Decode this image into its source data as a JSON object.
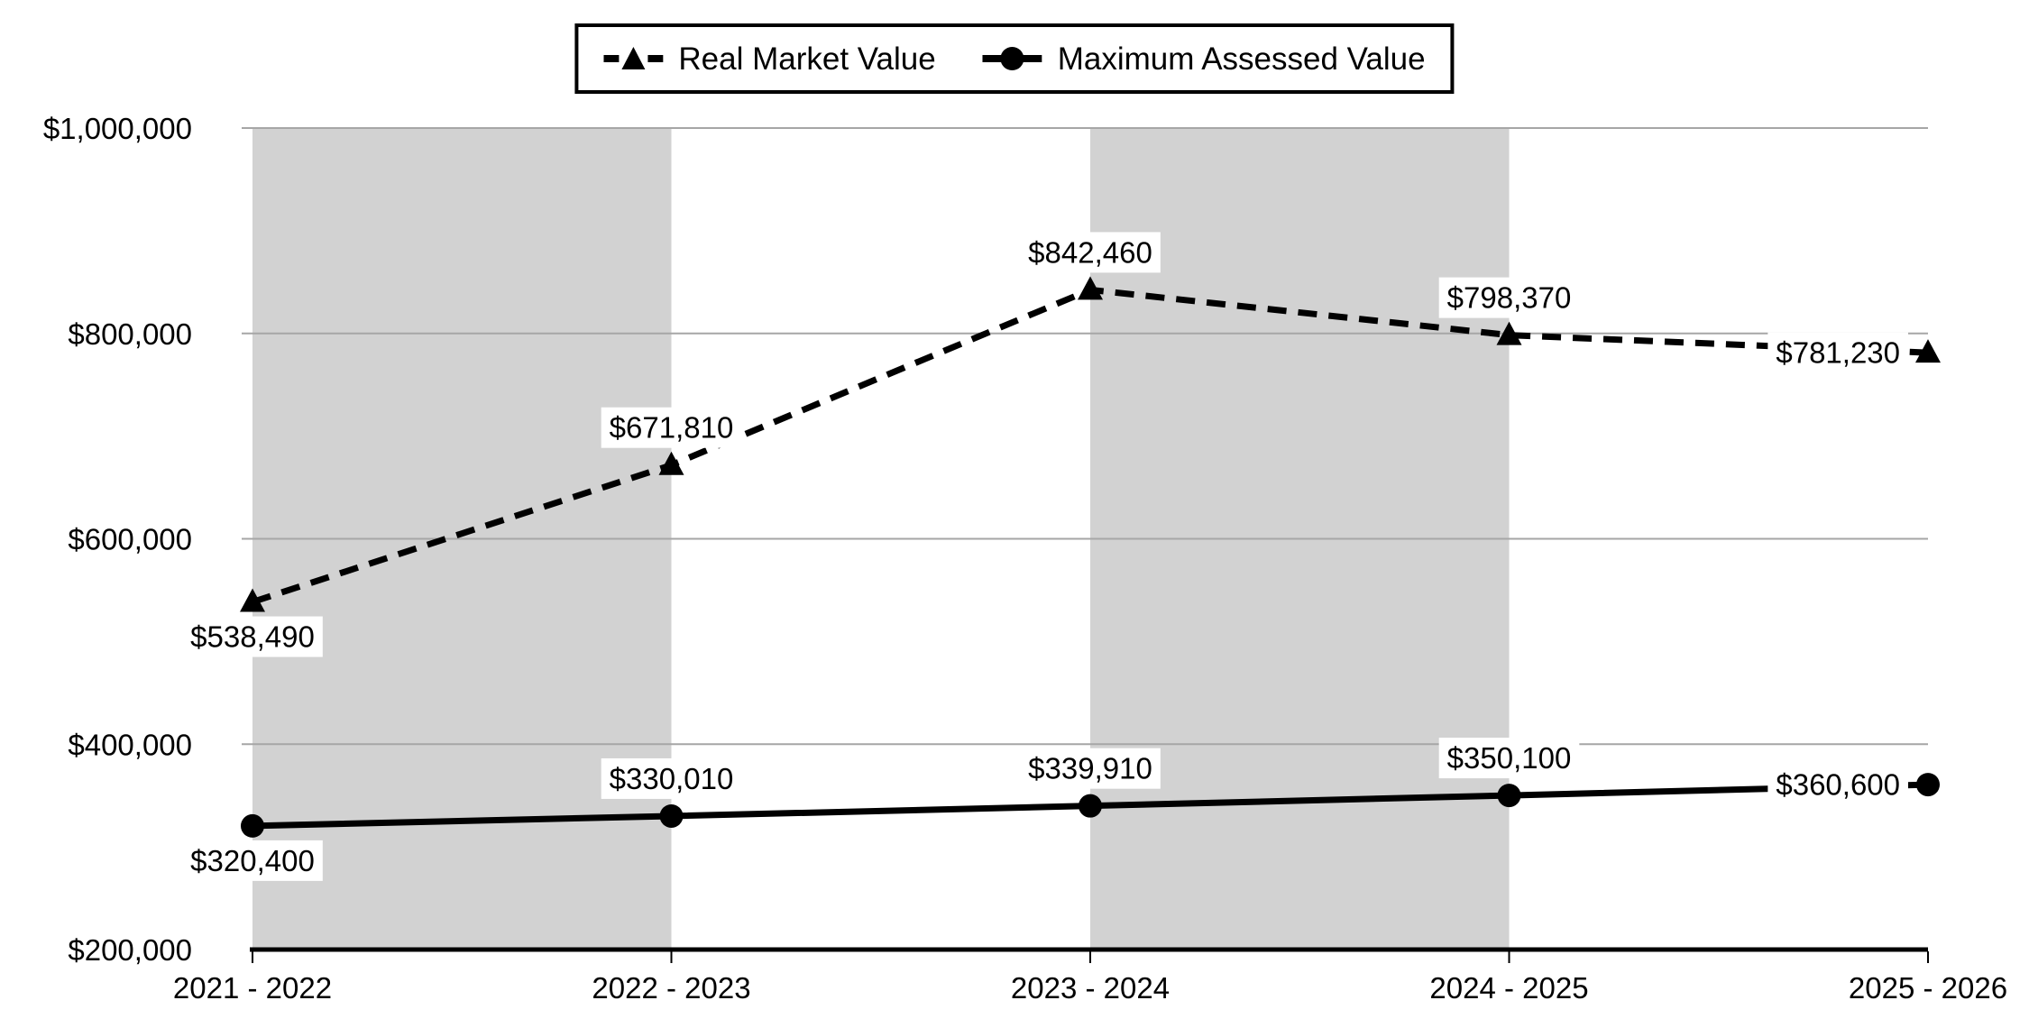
{
  "chart_data": {
    "type": "line",
    "categories": [
      "2021 - 2022",
      "2022 - 2023",
      "2023 - 2024",
      "2024 - 2025",
      "2025 - 2026"
    ],
    "series": [
      {
        "id": "real-market-value",
        "name": "Real Market Value",
        "line_style": "dashed",
        "marker": "triangle",
        "values": [
          538490,
          671810,
          842460,
          798370,
          781230
        ],
        "labels": [
          "$538,490",
          "$671,810",
          "$842,460",
          "$798,370",
          "$781,230"
        ],
        "label_positions": [
          "below",
          "above",
          "above",
          "above",
          "left"
        ]
      },
      {
        "id": "maximum-assessed-value",
        "name": "Maximum Assessed Value",
        "line_style": "solid",
        "marker": "circle",
        "values": [
          320400,
          330010,
          339910,
          350100,
          360600
        ],
        "labels": [
          "$320,400",
          "$330,010",
          "$339,910",
          "$350,100",
          "$360,600"
        ],
        "label_positions": [
          "below",
          "above",
          "above",
          "above",
          "left"
        ]
      }
    ],
    "ylim": [
      200000,
      1000000
    ],
    "yticks": [
      200000,
      400000,
      600000,
      800000,
      1000000
    ],
    "ytick_labels": [
      "$200,000",
      "$400,000",
      "$600,000",
      "$800,000",
      "$1,000,000"
    ],
    "shaded_bands": [
      [
        0,
        1
      ],
      [
        2,
        3
      ]
    ],
    "grid": true,
    "legend_position": "top-center",
    "colors": {
      "band": "#d2d2d2",
      "gridline": "#a6a6a6",
      "line": "#000000",
      "label_bg": "#ffffff",
      "text": "#000000"
    }
  }
}
